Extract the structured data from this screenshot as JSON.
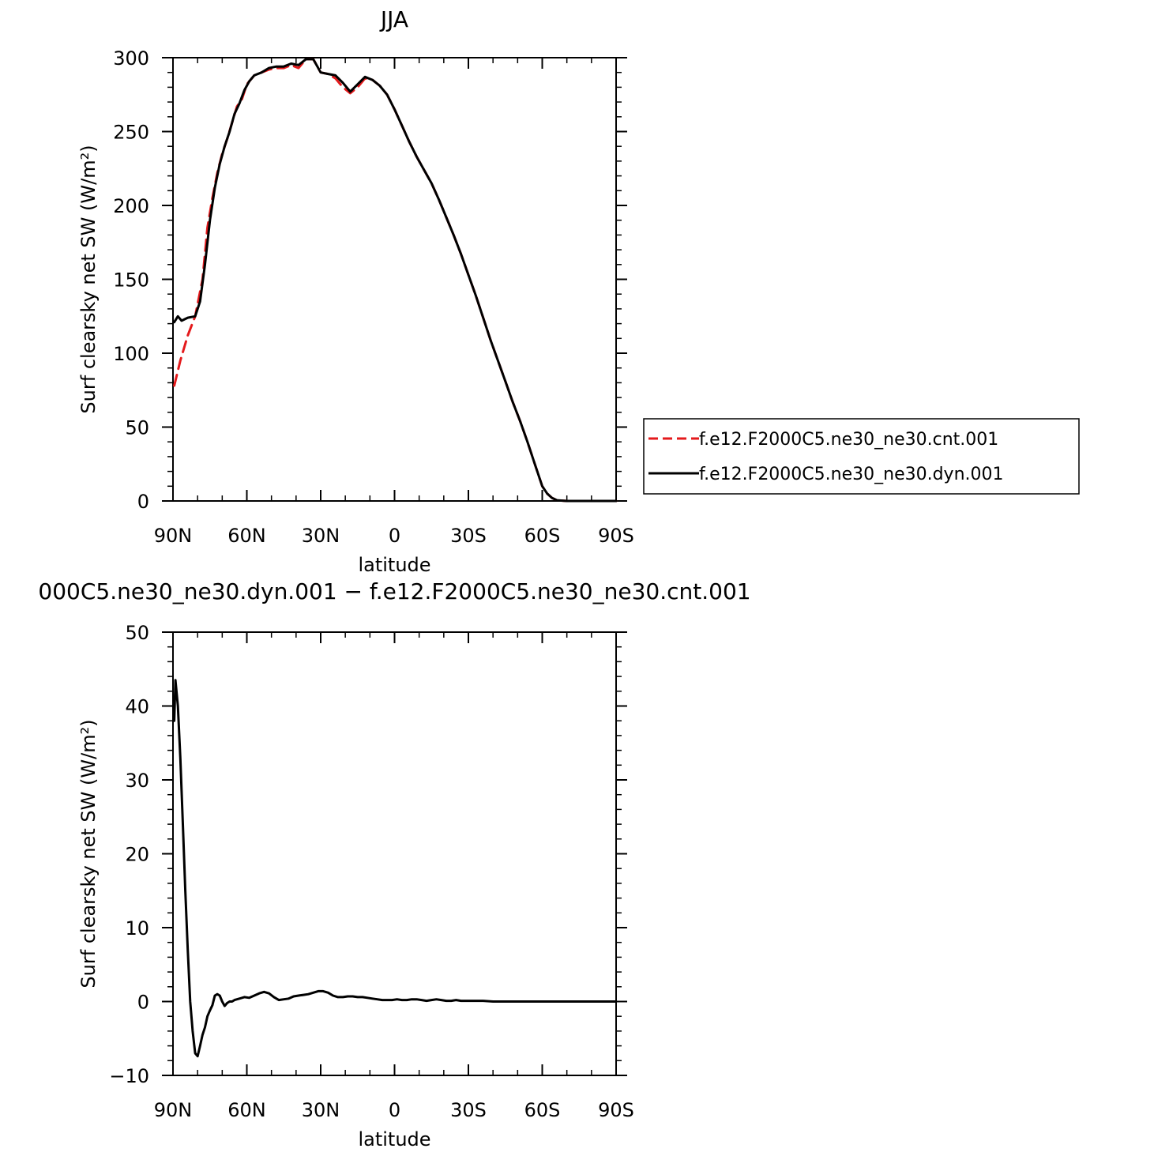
{
  "chart_data": [
    {
      "type": "line",
      "title": "JJA",
      "xlabel": "latitude",
      "ylabel": "Surf clearsky net SW (W/m²)",
      "xlim": [
        90,
        -90
      ],
      "ylim": [
        0,
        300
      ],
      "xticks": [
        90,
        60,
        30,
        0,
        -30,
        -60,
        -90
      ],
      "xtick_labels": [
        "90N",
        "60N",
        "30N",
        "0",
        "30S",
        "60S",
        "90S"
      ],
      "yticks": [
        0,
        50,
        100,
        150,
        200,
        250,
        300
      ],
      "ytick_labels": [
        "0",
        "50",
        "100",
        "150",
        "200",
        "250",
        "300"
      ],
      "legend_position": "right",
      "series": [
        {
          "name": "f.e12.F2000C5.ne30_ne30.cnt.001",
          "color": "#e41a1c",
          "style": "dashed",
          "points": [
            [
              89.5,
              78
            ],
            [
              87,
              95
            ],
            [
              84,
              112
            ],
            [
              81,
              125
            ],
            [
              78,
              150
            ],
            [
              76,
              185
            ],
            [
              74,
              205
            ],
            [
              72,
              222
            ],
            [
              70,
              235
            ],
            [
              68,
              245
            ],
            [
              66,
              256
            ],
            [
              64,
              267
            ],
            [
              62,
              272
            ],
            [
              60,
              282
            ],
            [
              57,
              288
            ],
            [
              54,
              290
            ],
            [
              51,
              292
            ],
            [
              48,
              293
            ],
            [
              45,
              293
            ],
            [
              42,
              295
            ],
            [
              39,
              293
            ],
            [
              36,
              299
            ],
            [
              33,
              299
            ],
            [
              30,
              290
            ],
            [
              27,
              289
            ],
            [
              24,
              286
            ],
            [
              21,
              280
            ],
            [
              18,
              276
            ],
            [
              15,
              280
            ],
            [
              12,
              286
            ],
            [
              9,
              285
            ],
            [
              6,
              281
            ],
            [
              3,
              275
            ],
            [
              0,
              265
            ],
            [
              -3,
              254
            ],
            [
              -6,
              243
            ],
            [
              -9,
              233
            ],
            [
              -12,
              224
            ],
            [
              -15,
              215
            ],
            [
              -18,
              204
            ],
            [
              -21,
              192
            ],
            [
              -24,
              180
            ],
            [
              -27,
              167
            ],
            [
              -30,
              153
            ],
            [
              -33,
              139
            ],
            [
              -36,
              124
            ],
            [
              -39,
              109
            ],
            [
              -42,
              95
            ],
            [
              -45,
              81
            ],
            [
              -48,
              67
            ],
            [
              -51,
              54
            ],
            [
              -54,
              40
            ],
            [
              -57,
              25
            ],
            [
              -60,
              10
            ],
            [
              -62,
              5
            ],
            [
              -64,
              2
            ],
            [
              -66,
              0.5
            ],
            [
              -70,
              0
            ],
            [
              -75,
              0
            ],
            [
              -80,
              0
            ],
            [
              -85,
              0
            ],
            [
              -90,
              0
            ]
          ]
        },
        {
          "name": "f.e12.F2000C5.ne30_ne30.dyn.001",
          "color": "#000000",
          "style": "solid",
          "points": [
            [
              89.5,
              121
            ],
            [
              88,
              125
            ],
            [
              86.5,
              122
            ],
            [
              84,
              124
            ],
            [
              81,
              125
            ],
            [
              79,
              135
            ],
            [
              77,
              160
            ],
            [
              75,
              190
            ],
            [
              73,
              212
            ],
            [
              71,
              228
            ],
            [
              69,
              240
            ],
            [
              67,
              250
            ],
            [
              65,
              262
            ],
            [
              63,
              269
            ],
            [
              61,
              278
            ],
            [
              59,
              284
            ],
            [
              57,
              288
            ],
            [
              54,
              290
            ],
            [
              51,
              293
            ],
            [
              48,
              294
            ],
            [
              45,
              294
            ],
            [
              42,
              296
            ],
            [
              39,
              295
            ],
            [
              36,
              299
            ],
            [
              33,
              299
            ],
            [
              30,
              290
            ],
            [
              27,
              289
            ],
            [
              24,
              288
            ],
            [
              21,
              283
            ],
            [
              18,
              277
            ],
            [
              15,
              282
            ],
            [
              12,
              287
            ],
            [
              9,
              285
            ],
            [
              6,
              281
            ],
            [
              3,
              275
            ],
            [
              0,
              265
            ],
            [
              -3,
              254
            ],
            [
              -6,
              243
            ],
            [
              -9,
              233
            ],
            [
              -12,
              224
            ],
            [
              -15,
              215
            ],
            [
              -18,
              204
            ],
            [
              -21,
              192
            ],
            [
              -24,
              180
            ],
            [
              -27,
              167
            ],
            [
              -30,
              153
            ],
            [
              -33,
              139
            ],
            [
              -36,
              124
            ],
            [
              -39,
              109
            ],
            [
              -42,
              95
            ],
            [
              -45,
              81
            ],
            [
              -48,
              67
            ],
            [
              -51,
              54
            ],
            [
              -54,
              40
            ],
            [
              -57,
              25
            ],
            [
              -60,
              10
            ],
            [
              -62,
              5
            ],
            [
              -64,
              2
            ],
            [
              -66,
              0.5
            ],
            [
              -70,
              0
            ],
            [
              -75,
              0
            ],
            [
              -80,
              0
            ],
            [
              -85,
              0
            ],
            [
              -90,
              0
            ]
          ]
        }
      ]
    },
    {
      "type": "line",
      "title": "000C5.ne30_ne30.dyn.001 − f.e12.F2000C5.ne30_ne30.cnt.001",
      "xlabel": "latitude",
      "ylabel": "Surf clearsky net SW (W/m²)",
      "xlim": [
        90,
        -90
      ],
      "ylim": [
        -10,
        50
      ],
      "xticks": [
        90,
        60,
        30,
        0,
        -30,
        -60,
        -90
      ],
      "xtick_labels": [
        "90N",
        "60N",
        "30N",
        "0",
        "30S",
        "60S",
        "90S"
      ],
      "yticks": [
        -10,
        0,
        10,
        20,
        30,
        40,
        50
      ],
      "ytick_labels": [
        "−10",
        "0",
        "10",
        "20",
        "30",
        "40",
        "50"
      ],
      "series": [
        {
          "color": "#000000",
          "style": "solid",
          "points": [
            [
              89.5,
              38
            ],
            [
              89,
              43.5
            ],
            [
              88,
              40
            ],
            [
              87,
              33
            ],
            [
              86,
              24
            ],
            [
              85,
              15
            ],
            [
              84,
              7
            ],
            [
              83,
              0
            ],
            [
              82,
              -4
            ],
            [
              81,
              -7
            ],
            [
              80,
              -7.4
            ],
            [
              79,
              -6
            ],
            [
              78,
              -4.5
            ],
            [
              77,
              -3.5
            ],
            [
              76,
              -2
            ],
            [
              75,
              -1.2
            ],
            [
              74,
              -0.5
            ],
            [
              73,
              0.8
            ],
            [
              72,
              1
            ],
            [
              71,
              0.8
            ],
            [
              70,
              0
            ],
            [
              69,
              -0.6
            ],
            [
              68,
              -0.2
            ],
            [
              67,
              0
            ],
            [
              66,
              0
            ],
            [
              65,
              0.2
            ],
            [
              63,
              0.4
            ],
            [
              61,
              0.6
            ],
            [
              59,
              0.5
            ],
            [
              57,
              0.8
            ],
            [
              55,
              1.1
            ],
            [
              53,
              1.3
            ],
            [
              51,
              1.1
            ],
            [
              49,
              0.6
            ],
            [
              47,
              0.2
            ],
            [
              45,
              0.3
            ],
            [
              43,
              0.4
            ],
            [
              41,
              0.7
            ],
            [
              39,
              0.8
            ],
            [
              37,
              0.9
            ],
            [
              35,
              1
            ],
            [
              33,
              1.2
            ],
            [
              31,
              1.4
            ],
            [
              29,
              1.4
            ],
            [
              27,
              1.2
            ],
            [
              25,
              0.8
            ],
            [
              23,
              0.6
            ],
            [
              21,
              0.6
            ],
            [
              19,
              0.7
            ],
            [
              17,
              0.7
            ],
            [
              15,
              0.6
            ],
            [
              13,
              0.6
            ],
            [
              11,
              0.5
            ],
            [
              9,
              0.4
            ],
            [
              7,
              0.3
            ],
            [
              5,
              0.2
            ],
            [
              3,
              0.2
            ],
            [
              1,
              0.2
            ],
            [
              -1,
              0.3
            ],
            [
              -3,
              0.2
            ],
            [
              -5,
              0.2
            ],
            [
              -7,
              0.3
            ],
            [
              -9,
              0.3
            ],
            [
              -11,
              0.2
            ],
            [
              -13,
              0.1
            ],
            [
              -15,
              0.2
            ],
            [
              -17,
              0.3
            ],
            [
              -19,
              0.2
            ],
            [
              -21,
              0.1
            ],
            [
              -23,
              0.1
            ],
            [
              -25,
              0.2
            ],
            [
              -27,
              0.1
            ],
            [
              -29,
              0.1
            ],
            [
              -31,
              0.1
            ],
            [
              -33,
              0.1
            ],
            [
              -36,
              0.1
            ],
            [
              -40,
              0
            ],
            [
              -45,
              0
            ],
            [
              -50,
              0
            ],
            [
              -55,
              0
            ],
            [
              -60,
              0
            ],
            [
              -65,
              0
            ],
            [
              -70,
              0
            ],
            [
              -75,
              0
            ],
            [
              -80,
              0
            ],
            [
              -85,
              0
            ],
            [
              -90,
              0
            ]
          ]
        }
      ]
    }
  ]
}
